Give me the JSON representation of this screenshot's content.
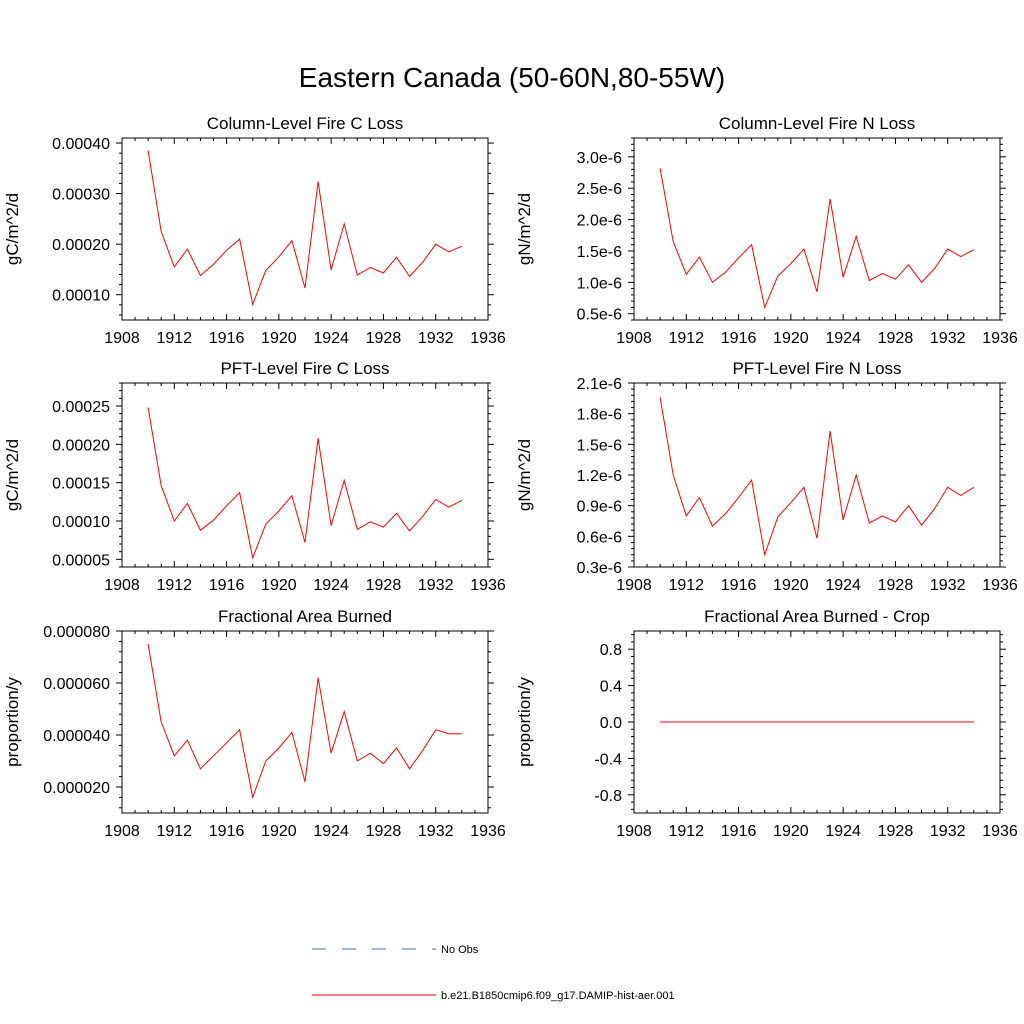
{
  "title": "Eastern Canada (50-60N,80-55W)",
  "legend": [
    {
      "label": "No Obs",
      "color": "#4a6fb0",
      "style": "dashed"
    },
    {
      "label": "b.e21.B1850cmip6.f09_g17.DAMIP-hist-aer.001",
      "color": "#ff0000",
      "style": "solid"
    }
  ],
  "chart_data": [
    {
      "type": "line",
      "title": "Column-Level Fire C Loss",
      "ylabel": "gC/m^2/d",
      "xlim": [
        1908,
        1936
      ],
      "xticks": [
        1908,
        1912,
        1916,
        1920,
        1924,
        1928,
        1932,
        1936
      ],
      "ylim": [
        5e-05,
        0.00041
      ],
      "yticks": [
        0.0001,
        0.0002,
        0.0003,
        0.0004
      ],
      "yticklabels": [
        "0.00010",
        "0.00020",
        "0.00030",
        "0.00040"
      ],
      "x": [
        1910,
        1911,
        1912,
        1913,
        1914,
        1915,
        1916,
        1917,
        1918,
        1919,
        1920,
        1921,
        1922,
        1923,
        1924,
        1925,
        1926,
        1927,
        1928,
        1929,
        1930,
        1931,
        1932,
        1933,
        1934
      ],
      "series": [
        {
          "name": "b.e21.B1850cmip6.f09_g17.DAMIP-hist-aer.001",
          "color": "#ff0000",
          "values": [
            0.000385,
            0.000225,
            0.000155,
            0.00019,
            0.000138,
            0.00016,
            0.000188,
            0.00021,
            8.1e-05,
            0.000148,
            0.000175,
            0.000207,
            0.000113,
            0.000324,
            0.000149,
            0.00024,
            0.000139,
            0.000154,
            0.000143,
            0.000174,
            0.000136,
            0.000164,
            0.0002,
            0.000185,
            0.000196
          ]
        }
      ]
    },
    {
      "type": "line",
      "title": "Column-Level Fire N Loss",
      "ylabel": "gN/m^2/d",
      "xlim": [
        1908,
        1936
      ],
      "xticks": [
        1908,
        1912,
        1916,
        1920,
        1924,
        1928,
        1932,
        1936
      ],
      "ylim": [
        4e-07,
        3.3e-06
      ],
      "yticks": [
        5e-07,
        1e-06,
        1.5e-06,
        2e-06,
        2.5e-06,
        3e-06
      ],
      "yticklabels": [
        "0.5e-6",
        "1.0e-6",
        "1.5e-6",
        "2.0e-6",
        "2.5e-6",
        "3.0e-6"
      ],
      "x": [
        1910,
        1911,
        1912,
        1913,
        1914,
        1915,
        1916,
        1917,
        1918,
        1919,
        1920,
        1921,
        1922,
        1923,
        1924,
        1925,
        1926,
        1927,
        1928,
        1929,
        1930,
        1931,
        1932,
        1933,
        1934
      ],
      "series": [
        {
          "name": "b.e21.B1850cmip6.f09_g17.DAMIP-hist-aer.001",
          "color": "#ff0000",
          "values": [
            2.82e-06,
            1.65e-06,
            1.13e-06,
            1.4e-06,
            1e-06,
            1.16e-06,
            1.39e-06,
            1.6e-06,
            6e-07,
            1.1e-06,
            1.3e-06,
            1.53e-06,
            8.5e-07,
            2.33e-06,
            1.08e-06,
            1.73e-06,
            1.03e-06,
            1.14e-06,
            1.05e-06,
            1.28e-06,
            1e-06,
            1.22e-06,
            1.53e-06,
            1.41e-06,
            1.52e-06
          ]
        }
      ]
    },
    {
      "type": "line",
      "title": "PFT-Level Fire C Loss",
      "ylabel": "gC/m^2/d",
      "xlim": [
        1908,
        1936
      ],
      "xticks": [
        1908,
        1912,
        1916,
        1920,
        1924,
        1928,
        1932,
        1936
      ],
      "ylim": [
        4e-05,
        0.00028
      ],
      "yticks": [
        5e-05,
        0.0001,
        0.00015,
        0.0002,
        0.00025
      ],
      "yticklabels": [
        "0.00005",
        "0.00010",
        "0.00015",
        "0.00020",
        "0.00025"
      ],
      "x": [
        1910,
        1911,
        1912,
        1913,
        1914,
        1915,
        1916,
        1917,
        1918,
        1919,
        1920,
        1921,
        1922,
        1923,
        1924,
        1925,
        1926,
        1927,
        1928,
        1929,
        1930,
        1931,
        1932,
        1933,
        1934
      ],
      "series": [
        {
          "name": "b.e21.B1850cmip6.f09_g17.DAMIP-hist-aer.001",
          "color": "#ff0000",
          "values": [
            0.000248,
            0.000146,
            0.0001,
            0.000123,
            8.8e-05,
            0.000101,
            0.00012,
            0.000137,
            5.2e-05,
            9.6e-05,
            0.000113,
            0.000133,
            7.2e-05,
            0.000208,
            9.4e-05,
            0.000153,
            8.9e-05,
            9.9e-05,
            9.2e-05,
            0.00011,
            8.7e-05,
            0.000106,
            0.000128,
            0.000118,
            0.000127
          ]
        }
      ]
    },
    {
      "type": "line",
      "title": "PFT-Level Fire N Loss",
      "ylabel": "gN/m^2/d",
      "xlim": [
        1908,
        1936
      ],
      "xticks": [
        1908,
        1912,
        1916,
        1920,
        1924,
        1928,
        1932,
        1936
      ],
      "ylim": [
        3e-07,
        2.1e-06
      ],
      "yticks": [
        3e-07,
        6e-07,
        9e-07,
        1.2e-06,
        1.5e-06,
        1.8e-06,
        2.1e-06
      ],
      "yticklabels": [
        "0.3e-6",
        "0.6e-6",
        "0.9e-6",
        "1.2e-6",
        "1.5e-6",
        "1.8e-6",
        "2.1e-6"
      ],
      "x": [
        1910,
        1911,
        1912,
        1913,
        1914,
        1915,
        1916,
        1917,
        1918,
        1919,
        1920,
        1921,
        1922,
        1923,
        1924,
        1925,
        1926,
        1927,
        1928,
        1929,
        1930,
        1931,
        1932,
        1933,
        1934
      ],
      "series": [
        {
          "name": "b.e21.B1850cmip6.f09_g17.DAMIP-hist-aer.001",
          "color": "#ff0000",
          "values": [
            1.96e-06,
            1.2e-06,
            8e-07,
            9.8e-07,
            7e-07,
            8.2e-07,
            9.8e-07,
            1.15e-06,
            4.2e-07,
            7.9e-07,
            9.3e-07,
            1.08e-06,
            5.8e-07,
            1.63e-06,
            7.6e-07,
            1.2e-06,
            7.3e-07,
            8e-07,
            7.4e-07,
            9e-07,
            7.1e-07,
            8.7e-07,
            1.08e-06,
            1e-06,
            1.08e-06
          ]
        }
      ]
    },
    {
      "type": "line",
      "title": "Fractional Area Burned",
      "ylabel": "proportion/y",
      "xlim": [
        1908,
        1936
      ],
      "xticks": [
        1908,
        1912,
        1916,
        1920,
        1924,
        1928,
        1932,
        1936
      ],
      "ylim": [
        1e-05,
        8e-05
      ],
      "yticks": [
        2e-05,
        4e-05,
        6e-05,
        8e-05
      ],
      "yticklabels": [
        "0.000020",
        "0.000040",
        "0.000060",
        "0.000080"
      ],
      "x": [
        1910,
        1911,
        1912,
        1913,
        1914,
        1915,
        1916,
        1917,
        1918,
        1919,
        1920,
        1921,
        1922,
        1923,
        1924,
        1925,
        1926,
        1927,
        1928,
        1929,
        1930,
        1931,
        1932,
        1933,
        1934
      ],
      "series": [
        {
          "name": "b.e21.B1850cmip6.f09_g17.DAMIP-hist-aer.001",
          "color": "#ff0000",
          "values": [
            7.5e-05,
            4.5e-05,
            3.2e-05,
            3.8e-05,
            2.7e-05,
            3.2e-05,
            3.7e-05,
            4.2e-05,
            1.6e-05,
            3e-05,
            3.5e-05,
            4.1e-05,
            2.2e-05,
            6.2e-05,
            3.3e-05,
            4.9e-05,
            3e-05,
            3.3e-05,
            2.9e-05,
            3.5e-05,
            2.7e-05,
            3.4e-05,
            4.2e-05,
            4.05e-05,
            4.05e-05
          ]
        }
      ]
    },
    {
      "type": "line",
      "title": "Fractional Area Burned - Crop",
      "ylabel": "proportion/y",
      "xlim": [
        1908,
        1936
      ],
      "xticks": [
        1908,
        1912,
        1916,
        1920,
        1924,
        1928,
        1932,
        1936
      ],
      "ylim": [
        -1.0,
        1.0
      ],
      "yticks": [
        -0.8,
        -0.4,
        0.0,
        0.4,
        0.8
      ],
      "yticklabels": [
        "-0.8",
        "-0.4",
        "0.0",
        "0.4",
        "0.8"
      ],
      "x": [
        1910,
        1911,
        1912,
        1913,
        1914,
        1915,
        1916,
        1917,
        1918,
        1919,
        1920,
        1921,
        1922,
        1923,
        1924,
        1925,
        1926,
        1927,
        1928,
        1929,
        1930,
        1931,
        1932,
        1933,
        1934
      ],
      "series": [
        {
          "name": "b.e21.B1850cmip6.f09_g17.DAMIP-hist-aer.001",
          "color": "#ff0000",
          "values": [
            0,
            0,
            0,
            0,
            0,
            0,
            0,
            0,
            0,
            0,
            0,
            0,
            0,
            0,
            0,
            0,
            0,
            0,
            0,
            0,
            0,
            0,
            0,
            0,
            0
          ]
        }
      ]
    }
  ]
}
